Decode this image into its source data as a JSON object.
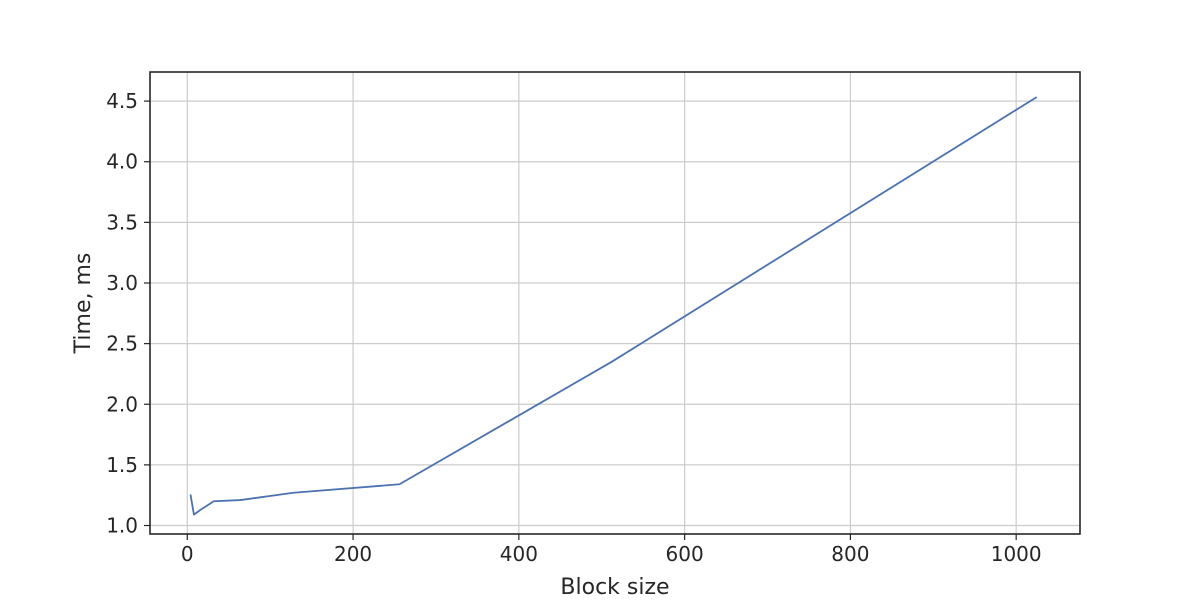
{
  "chart_data": {
    "type": "line",
    "title": "",
    "xlabel": "Block size",
    "ylabel": "Time, ms",
    "xlim": [
      -45,
      1077
    ],
    "ylim": [
      0.93,
      4.74
    ],
    "xticks": [
      0,
      200,
      400,
      600,
      800,
      1000
    ],
    "xtick_labels": [
      "0",
      "200",
      "400",
      "600",
      "800",
      "1000"
    ],
    "yticks": [
      1.0,
      1.5,
      2.0,
      2.5,
      3.0,
      3.5,
      4.0,
      4.5
    ],
    "ytick_labels": [
      "1.0",
      "1.5",
      "2.0",
      "2.5",
      "3.0",
      "3.5",
      "4.0",
      "4.5"
    ],
    "grid": true,
    "legend": false,
    "series": [
      {
        "color": "#4c72b0",
        "x": [
          4,
          8,
          16,
          32,
          64,
          128,
          256,
          512,
          1024
        ],
        "y": [
          1.25,
          1.09,
          1.13,
          1.2,
          1.21,
          1.27,
          1.34,
          2.35,
          4.53
        ]
      }
    ]
  }
}
